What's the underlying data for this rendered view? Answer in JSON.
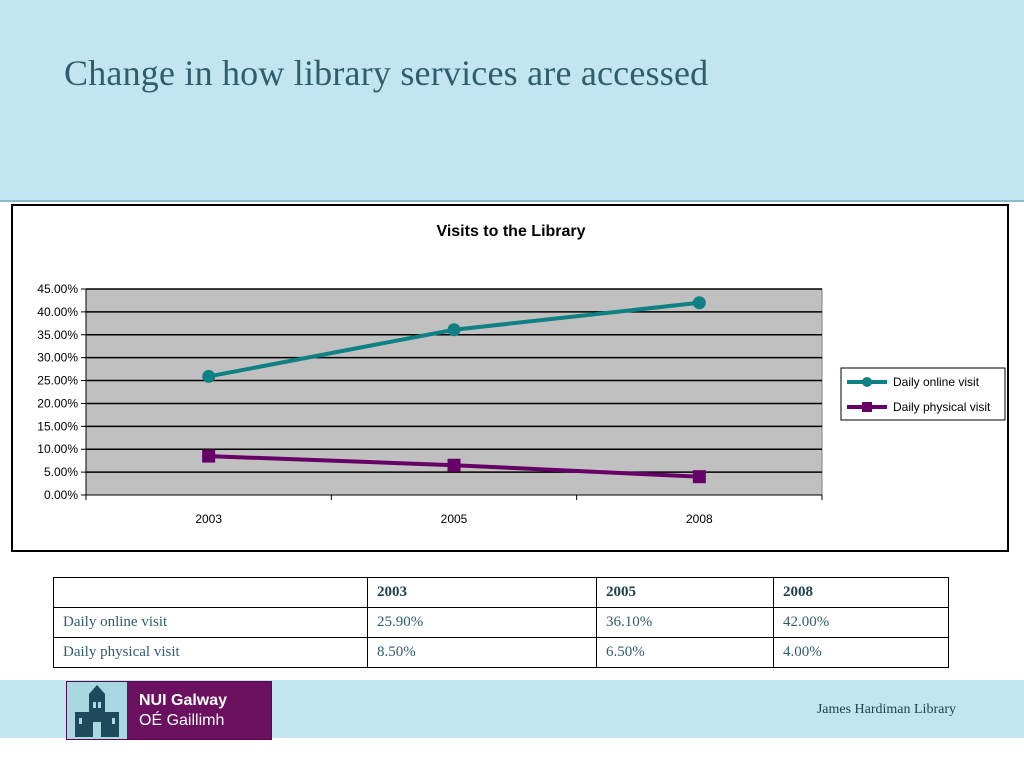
{
  "slide": {
    "title": "Change in how library services are accessed"
  },
  "chart_data": {
    "type": "line",
    "title": "Visits to the Library",
    "categories": [
      "2003",
      "2005",
      "2008"
    ],
    "series": [
      {
        "name": "Daily online visit",
        "values": [
          25.9,
          36.1,
          42.0
        ],
        "color": "#0f8083",
        "marker": "circle"
      },
      {
        "name": "Daily physical visit",
        "values": [
          8.5,
          6.5,
          4.0
        ],
        "color": "#660066",
        "marker": "square"
      }
    ],
    "ylim": [
      0,
      45
    ],
    "yticks": [
      "0.00%",
      "5.00%",
      "10.00%",
      "15.00%",
      "20.00%",
      "25.00%",
      "30.00%",
      "35.00%",
      "40.00%",
      "45.00%"
    ],
    "plot_background": "#c0c0c0",
    "grid": true,
    "legend_position": "right"
  },
  "table": {
    "headers": [
      "",
      "2003",
      "2005",
      "2008"
    ],
    "rows": [
      [
        "Daily online visit",
        "25.90%",
        "36.10%",
        "42.00%"
      ],
      [
        "Daily physical visit",
        "8.50%",
        "6.50%",
        "4.00%"
      ]
    ]
  },
  "footer": {
    "logo_line1": "NUI Galway",
    "logo_line2": "OÉ Gaillimh",
    "credit": "James Hardiman Library"
  }
}
